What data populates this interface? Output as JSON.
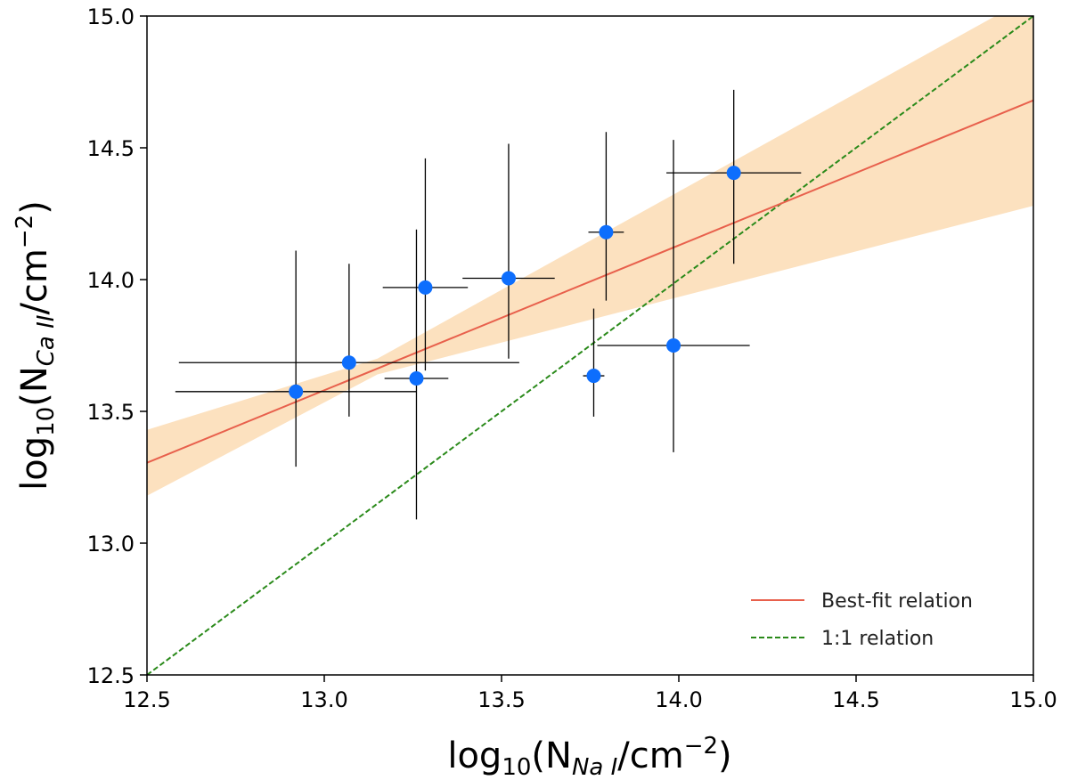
{
  "chart_data": {
    "type": "scatter",
    "xlabel": {
      "base": "log",
      "base_sub": "10",
      "open": "(N",
      "species": "Na I",
      "close": "/cm",
      "exp": "−2",
      "end": ")"
    },
    "ylabel": {
      "base": "log",
      "base_sub": "10",
      "open": "(N",
      "species": "Ca II",
      "close": "/cm",
      "exp": "−2",
      "end": ")"
    },
    "xlim": [
      12.5,
      15.0
    ],
    "ylim": [
      12.5,
      15.0
    ],
    "xticks": [
      "12.5",
      "13.0",
      "13.5",
      "14.0",
      "14.5",
      "15.0"
    ],
    "yticks": [
      "12.5",
      "13.0",
      "13.5",
      "14.0",
      "14.5",
      "15.0"
    ],
    "grid": false,
    "points": [
      {
        "x": 12.92,
        "y": 13.575,
        "xerr": 0.34,
        "yerr_lo": 0.285,
        "yerr_hi": 0.535
      },
      {
        "x": 13.07,
        "y": 13.685,
        "xerr": 0.48,
        "yerr_lo": 0.205,
        "yerr_hi": 0.375
      },
      {
        "x": 13.26,
        "y": 13.625,
        "xerr": 0.09,
        "yerr_lo": 0.535,
        "yerr_hi": 0.565
      },
      {
        "x": 13.285,
        "y": 13.97,
        "xerr": 0.12,
        "yerr_lo": 0.315,
        "yerr_hi": 0.49
      },
      {
        "x": 13.52,
        "y": 14.005,
        "xerr": 0.13,
        "yerr_lo": 0.305,
        "yerr_hi": 0.51
      },
      {
        "x": 13.76,
        "y": 13.635,
        "xerr": 0.03,
        "yerr_lo": 0.155,
        "yerr_hi": 0.255
      },
      {
        "x": 13.795,
        "y": 14.18,
        "xerr": 0.05,
        "yerr_lo": 0.26,
        "yerr_hi": 0.38
      },
      {
        "x": 13.985,
        "y": 13.75,
        "xerr": 0.215,
        "yerr_lo": 0.405,
        "yerr_hi": 0.78
      },
      {
        "x": 14.155,
        "y": 14.405,
        "xerr": 0.19,
        "yerr_lo": 0.345,
        "yerr_hi": 0.315
      }
    ],
    "best_fit": {
      "name": "Best-fit relation",
      "x": [
        12.5,
        15.0
      ],
      "y": [
        13.305,
        14.68
      ]
    },
    "confidence_band": {
      "x": [
        12.5,
        13.15,
        15.0
      ],
      "upper": [
        13.43,
        13.7,
        15.08
      ],
      "lower": [
        13.18,
        13.64,
        14.28
      ]
    },
    "one_to_one": {
      "name": "1:1 relation",
      "x": [
        12.5,
        15.0
      ],
      "y": [
        12.5,
        15.0
      ]
    },
    "legend": {
      "position": "bottom-right",
      "entries": [
        "Best-fit relation",
        "1:1 relation"
      ]
    }
  },
  "colors": {
    "points": "#0d6efd",
    "errorbars": "#000000",
    "best_fit": "#e8604c",
    "one_to_one": "#2a8a1a",
    "band": "#fcdcb4"
  }
}
